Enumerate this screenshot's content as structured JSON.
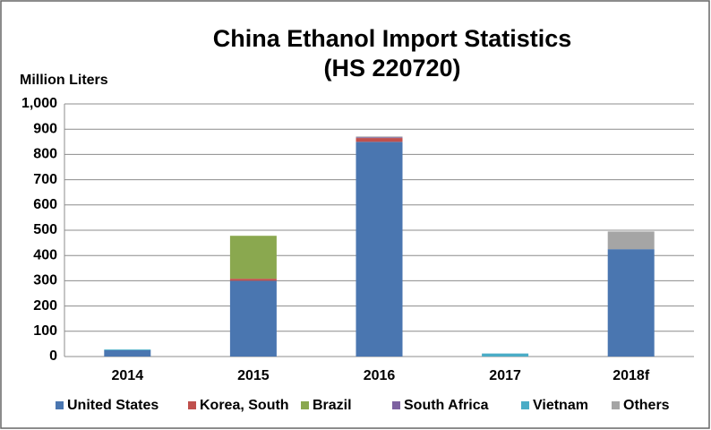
{
  "chart_data": {
    "type": "stacked_bar",
    "title": "China Ethanol Import Statistics",
    "subtitle": "(HS 220720)",
    "y_label": "Million Liters",
    "categories": [
      "2014",
      "2015",
      "2016",
      "2017",
      "2018f"
    ],
    "series": [
      {
        "name": "United States",
        "color": "#4a76b0",
        "values": [
          25,
          300,
          850,
          0,
          425
        ]
      },
      {
        "name": "Korea, South",
        "color": "#c0504d",
        "values": [
          0,
          8,
          15,
          0,
          0
        ]
      },
      {
        "name": "Brazil",
        "color": "#8aa84f",
        "values": [
          0,
          170,
          0,
          0,
          0
        ]
      },
      {
        "name": "South Africa",
        "color": "#7e62a1",
        "values": [
          0,
          0,
          3,
          0,
          0
        ]
      },
      {
        "name": "Vietnam",
        "color": "#4aacc6",
        "values": [
          3,
          0,
          0,
          12,
          0
        ]
      },
      {
        "name": "Others",
        "color": "#a5a5a5",
        "values": [
          0,
          0,
          3,
          0,
          70
        ]
      }
    ],
    "ylim": [
      0,
      1000
    ],
    "yticks": [
      0,
      100,
      200,
      300,
      400,
      500,
      600,
      700,
      800,
      900,
      {
        "value": 1000,
        "label": "1,000"
      }
    ],
    "grid": true,
    "legend": "bottom"
  }
}
